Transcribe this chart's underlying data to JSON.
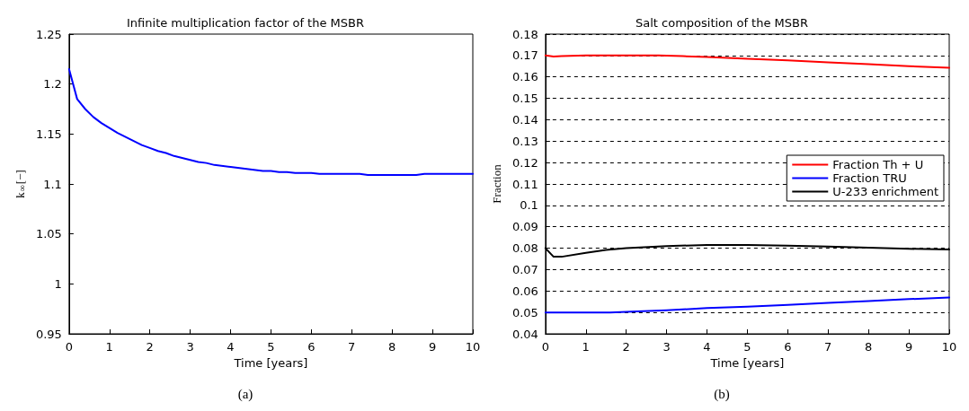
{
  "chart_data": [
    {
      "type": "line",
      "title": "Infinite multiplication factor of the MSBR",
      "xlabel": "Time [years]",
      "ylabel": "k$_{∞}$[−]",
      "annotations": [
        "(a)"
      ],
      "xlim": [
        0,
        10
      ],
      "xticks": [
        0,
        1,
        2,
        3,
        4,
        5,
        6,
        7,
        8,
        9,
        10
      ],
      "ylim": [
        0.95,
        1.25
      ],
      "yticks": [
        0.95,
        1,
        1.05,
        1.1,
        1.15,
        1.2,
        1.25
      ],
      "grid": false,
      "legend": false,
      "marker": "none",
      "line_style": "solid",
      "series": [
        {
          "color": "#0000ff",
          "x": [
            0,
            0.2,
            0.4,
            0.6,
            0.8,
            1,
            1.2,
            1.5,
            1.8,
            2,
            2.2,
            2.4,
            2.6,
            3,
            3.2,
            3.4,
            3.6,
            4,
            4.4,
            4.8,
            5,
            5.2,
            5.4,
            5.6,
            6,
            6.2,
            7,
            7.2,
            7.4,
            8,
            8.6,
            8.8,
            10
          ],
          "values": [
            1.215,
            1.185,
            1.175,
            1.167,
            1.161,
            1.156,
            1.151,
            1.145,
            1.139,
            1.136,
            1.133,
            1.131,
            1.128,
            1.124,
            1.122,
            1.121,
            1.119,
            1.117,
            1.115,
            1.113,
            1.113,
            1.112,
            1.112,
            1.111,
            1.111,
            1.11,
            1.11,
            1.11,
            1.109,
            1.109,
            1.109,
            1.11,
            1.11
          ]
        }
      ]
    },
    {
      "type": "line",
      "title": "Salt composition of the MSBR",
      "xlabel": "Time [years]",
      "ylabel": "Fraction",
      "annotations": [
        "(b)"
      ],
      "xlim": [
        0,
        10
      ],
      "xticks": [
        0,
        1,
        2,
        3,
        4,
        5,
        6,
        7,
        8,
        9,
        10
      ],
      "ylim": [
        0.04,
        0.18
      ],
      "yticks": [
        0.04,
        0.05,
        0.06,
        0.07,
        0.08,
        0.09,
        0.1,
        0.11,
        0.12,
        0.13,
        0.14,
        0.15,
        0.16,
        0.17,
        0.18
      ],
      "grid": "y",
      "legend": "right",
      "marker": "none",
      "line_style": "solid",
      "series": [
        {
          "name": "Fraction Th + U",
          "color": "#ff0000",
          "x": [
            0,
            0.2,
            0.4,
            1,
            2,
            2.8,
            3.4,
            4,
            5,
            6,
            7,
            8,
            9,
            10
          ],
          "values": [
            0.17,
            0.1695,
            0.1697,
            0.17,
            0.17,
            0.17,
            0.1697,
            0.1693,
            0.1685,
            0.1677,
            0.1668,
            0.166,
            0.165,
            0.1643
          ]
        },
        {
          "name": "Fraction TRU",
          "color": "#0000ff",
          "x": [
            0,
            1.6,
            2,
            3,
            4,
            5,
            6,
            7,
            8,
            9,
            10
          ],
          "values": [
            0.05,
            0.05,
            0.0503,
            0.051,
            0.052,
            0.0527,
            0.0535,
            0.0545,
            0.0553,
            0.0562,
            0.057
          ]
        },
        {
          "name": "U‑233 enrichment",
          "color": "#000000",
          "x": [
            0,
            0.2,
            0.4,
            1,
            1.5,
            2,
            3,
            4,
            5,
            6,
            7,
            8,
            9,
            10
          ],
          "values": [
            0.08,
            0.076,
            0.076,
            0.0778,
            0.0792,
            0.08,
            0.081,
            0.0815,
            0.0815,
            0.0812,
            0.0808,
            0.0802,
            0.0797,
            0.0794
          ]
        }
      ]
    }
  ]
}
